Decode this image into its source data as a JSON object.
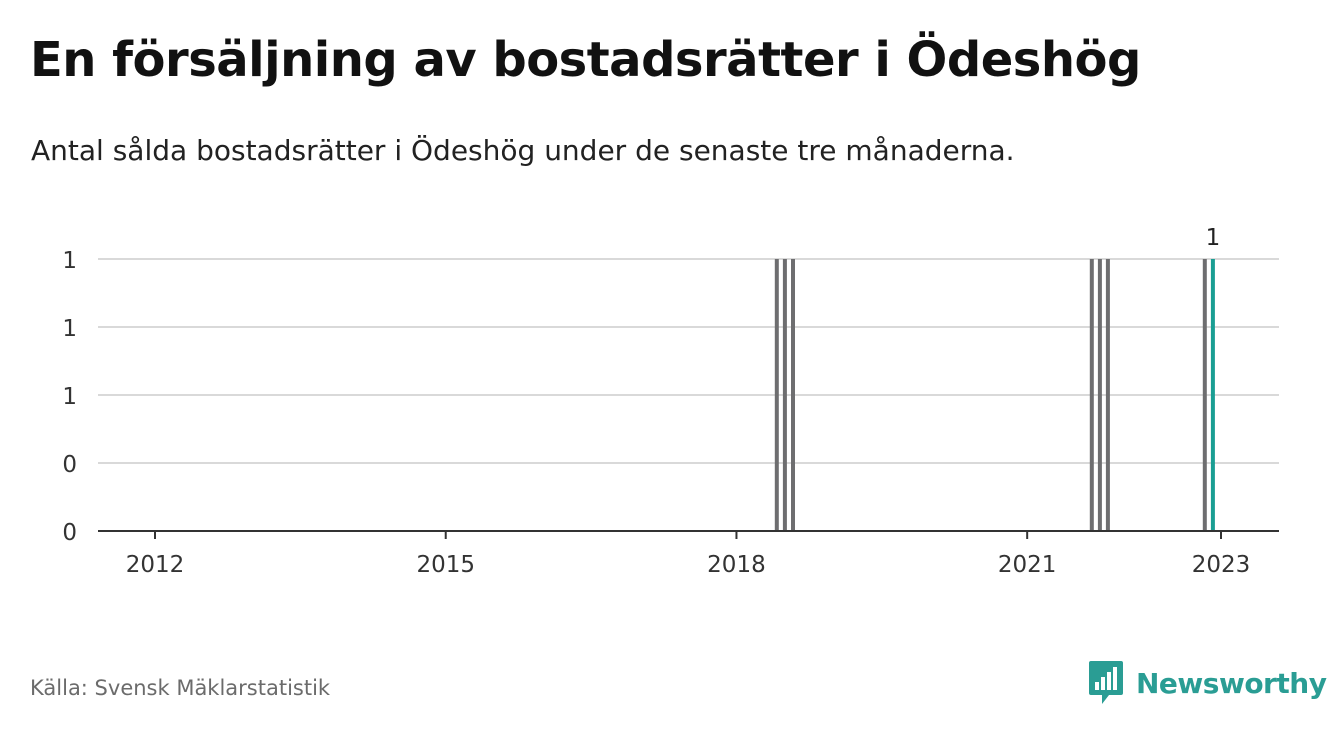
{
  "title": "En försäljning av bostadsrätter i Ödeshög",
  "subtitle": "Antal sålda bostadsrätter i Ödeshög under de senaste tre månaderna.",
  "source": "Källa: Svensk Mäklarstatistik",
  "brand": {
    "name": "Newsworthy",
    "icon": "newsworthy-logo-icon"
  },
  "colors": {
    "bar": "#6e6e70",
    "highlight": "#1a9e93",
    "grid": "#d9d9d9",
    "axis": "#333333",
    "brand": "#2a9d94"
  },
  "chart_data": {
    "type": "bar",
    "title": "En försäljning av bostadsrätter i Ödeshög",
    "subtitle": "Antal sålda bostadsrätter i Ödeshög under de senaste tre månaderna.",
    "xlabel": "",
    "ylabel": "",
    "x_ticks": [
      "2012",
      "2015",
      "2018",
      "2021",
      "2023"
    ],
    "y_ticks": [
      "0",
      "0",
      "1",
      "1",
      "1"
    ],
    "ylim": [
      0,
      1
    ],
    "grid": true,
    "series": [
      {
        "x": [
          "2018-06",
          "2018-07",
          "2018-08",
          "2021-09",
          "2021-10",
          "2021-11",
          "2022-11",
          "2022-12"
        ],
        "values": [
          1,
          1,
          1,
          1,
          1,
          1,
          1,
          1
        ]
      }
    ],
    "highlight": {
      "x": "2022-12",
      "value": 1,
      "label": "1"
    }
  }
}
